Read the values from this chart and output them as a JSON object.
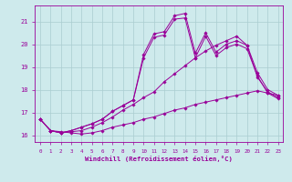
{
  "title": "",
  "xlabel": "Windchill (Refroidissement éolien,°C)",
  "ylabel": "",
  "bg_color": "#ceeaec",
  "line_color": "#990099",
  "grid_color": "#aacdd0",
  "xlim": [
    -0.5,
    23.5
  ],
  "ylim": [
    15.7,
    21.7
  ],
  "xticks": [
    0,
    1,
    2,
    3,
    4,
    5,
    6,
    7,
    8,
    9,
    10,
    11,
    12,
    13,
    14,
    15,
    16,
    17,
    18,
    19,
    20,
    21,
    22,
    23
  ],
  "yticks": [
    16,
    17,
    18,
    19,
    20,
    21
  ],
  "series": [
    [
      16.7,
      16.2,
      16.15,
      16.1,
      16.05,
      16.1,
      16.2,
      16.35,
      16.45,
      16.55,
      16.7,
      16.8,
      16.95,
      17.1,
      17.2,
      17.35,
      17.45,
      17.55,
      17.65,
      17.75,
      17.85,
      17.95,
      17.85,
      17.75
    ],
    [
      16.7,
      16.2,
      16.1,
      16.15,
      16.2,
      16.35,
      16.55,
      16.8,
      17.1,
      17.35,
      17.65,
      17.9,
      18.35,
      18.7,
      19.05,
      19.4,
      19.7,
      19.95,
      20.15,
      20.35,
      19.95,
      18.55,
      17.9,
      17.65
    ],
    [
      16.7,
      16.2,
      16.1,
      16.2,
      16.35,
      16.5,
      16.7,
      17.05,
      17.3,
      17.55,
      19.55,
      20.45,
      20.55,
      21.25,
      21.35,
      19.6,
      20.5,
      19.65,
      20.0,
      20.15,
      19.95,
      18.75,
      18.0,
      17.75
    ],
    [
      16.7,
      16.2,
      16.1,
      16.2,
      16.35,
      16.5,
      16.7,
      17.05,
      17.3,
      17.55,
      19.4,
      20.3,
      20.4,
      21.1,
      21.15,
      19.4,
      20.35,
      19.5,
      19.85,
      20.0,
      19.8,
      18.6,
      17.85,
      17.6
    ]
  ]
}
